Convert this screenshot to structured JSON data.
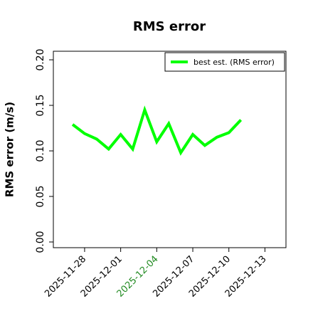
{
  "chart_data": {
    "type": "line",
    "title": "RMS error",
    "ylabel": "RMS error (m/s)",
    "x": [
      "2025-11-27",
      "2025-11-28",
      "2025-11-29",
      "2025-11-30",
      "2025-12-01",
      "2025-12-02",
      "2025-12-03",
      "2025-12-04",
      "2025-12-05",
      "2025-12-06",
      "2025-12-07",
      "2025-12-08",
      "2025-12-09",
      "2025-12-10",
      "2025-12-11"
    ],
    "series": [
      {
        "name": "best est. (RMS error)",
        "color": "#00ff00",
        "values": [
          0.129,
          0.119,
          0.113,
          0.102,
          0.118,
          0.102,
          0.145,
          0.11,
          0.13,
          0.098,
          0.118,
          0.106,
          0.115,
          0.12,
          0.134
        ]
      }
    ],
    "xlim": [
      "2025-11-25T09:36",
      "2025-12-14T18:00"
    ],
    "xticks": [
      "2025-11-28",
      "2025-12-01",
      "2025-12-04",
      "2025-12-07",
      "2025-12-10",
      "2025-12-13"
    ],
    "xtick_colors": [
      "#000000",
      "#000000",
      "#228b22",
      "#000000",
      "#000000",
      "#000000"
    ],
    "ylim": [
      -0.00625,
      0.2094
    ],
    "yticks": [
      {
        "value": 0,
        "label": "0.00"
      },
      {
        "value": 0.05,
        "label": "0.05"
      },
      {
        "value": 0.1,
        "label": "0.10"
      },
      {
        "value": 0.15,
        "label": "0.15"
      },
      {
        "value": 0.2,
        "label": "0.20"
      }
    ],
    "legend": "upper right"
  }
}
